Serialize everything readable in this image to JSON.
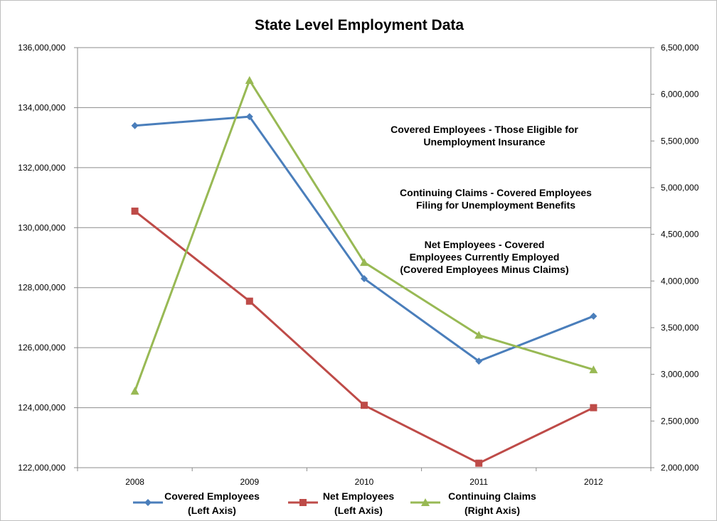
{
  "chart_data": {
    "type": "line",
    "title": "State Level Employment Data",
    "categories": [
      "2008",
      "2009",
      "2010",
      "2011",
      "2012"
    ],
    "y_left": {
      "min": 122000000,
      "max": 136000000,
      "step": 2000000,
      "tick_labels": [
        "122,000,000",
        "124,000,000",
        "126,000,000",
        "128,000,000",
        "130,000,000",
        "132,000,000",
        "134,000,000",
        "136,000,000"
      ]
    },
    "y_right": {
      "min": 2000000,
      "max": 6500000,
      "step": 500000,
      "tick_labels": [
        "2,000,000",
        "2,500,000",
        "3,000,000",
        "3,500,000",
        "4,000,000",
        "4,500,000",
        "5,000,000",
        "5,500,000",
        "6,000,000",
        "6,500,000"
      ]
    },
    "grid": true,
    "legend_position": "bottom",
    "series": [
      {
        "name": "Covered Employees",
        "legend_lines": [
          "Covered Employees",
          "(Left Axis)"
        ],
        "axis": "left",
        "color": "#4a7ebb",
        "marker": "diamond",
        "values": [
          133400000,
          133700000,
          128300000,
          125550000,
          127050000
        ]
      },
      {
        "name": "Net Employees",
        "legend_lines": [
          "Net Employees",
          "(Left Axis)"
        ],
        "axis": "left",
        "color": "#be4b48",
        "marker": "square",
        "values": [
          130550000,
          127550000,
          124080000,
          122150000,
          124000000
        ]
      },
      {
        "name": "Continuing Claims",
        "legend_lines": [
          "Continuing Claims",
          "(Right Axis)"
        ],
        "axis": "right",
        "color": "#98b954",
        "marker": "triangle",
        "values": [
          2820000,
          6150000,
          4200000,
          3420000,
          3050000
        ]
      }
    ],
    "annotations": [
      {
        "lines": [
          "Covered Employees - Those Eligible for",
          "Unemployment Insurance"
        ]
      },
      {
        "lines": [
          "Continuing Claims - Covered Employees",
          "Filing for Unemployment Benefits"
        ]
      },
      {
        "lines": [
          "Net Employees - Covered",
          "Employees Currently Employed",
          "(Covered Employees Minus Claims)"
        ]
      }
    ]
  }
}
